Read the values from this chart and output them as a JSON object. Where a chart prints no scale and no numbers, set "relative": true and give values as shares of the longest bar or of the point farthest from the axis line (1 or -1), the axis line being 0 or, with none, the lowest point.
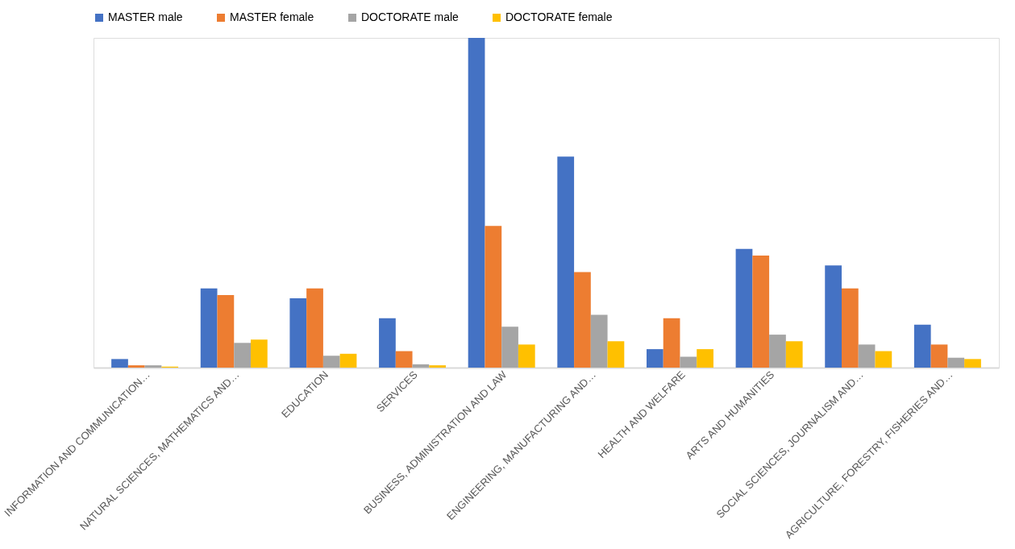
{
  "chart_data": {
    "type": "bar",
    "relative": true,
    "legend": "top",
    "grid": false,
    "categories": [
      "INFORMATION AND COMMUNICATION…",
      "NATURAL SCIENCES, MATHEMATICS AND…",
      "EDUCATION",
      "SERVICES",
      "BUSINESS, ADMINISTRATION AND LAW",
      "ENGINEERING, MANUFACTURING AND…",
      "HEALTH AND WELFARE",
      "ARTS AND HUMANITIES",
      "SOCIAL SCIENCES, JOURNALISM AND…",
      "AGRICULTURE, FORESTRY, FISHERIES AND…"
    ],
    "series": [
      {
        "name": "MASTER male",
        "color": "#4472c4",
        "values": [
          0.026,
          0.24,
          0.21,
          0.15,
          1.0,
          0.64,
          0.056,
          0.36,
          0.31,
          0.13
        ]
      },
      {
        "name": "MASTER female",
        "color": "#ed7d31",
        "values": [
          0.007,
          0.22,
          0.24,
          0.05,
          0.43,
          0.29,
          0.15,
          0.34,
          0.24,
          0.07
        ]
      },
      {
        "name": "DOCTORATE male",
        "color": "#a5a5a5",
        "values": [
          0.007,
          0.075,
          0.036,
          0.01,
          0.124,
          0.16,
          0.033,
          0.1,
          0.07,
          0.03
        ]
      },
      {
        "name": "DOCTORATE female",
        "color": "#ffc000",
        "values": [
          0.003,
          0.085,
          0.042,
          0.007,
          0.07,
          0.08,
          0.056,
          0.08,
          0.05,
          0.026
        ]
      }
    ]
  }
}
